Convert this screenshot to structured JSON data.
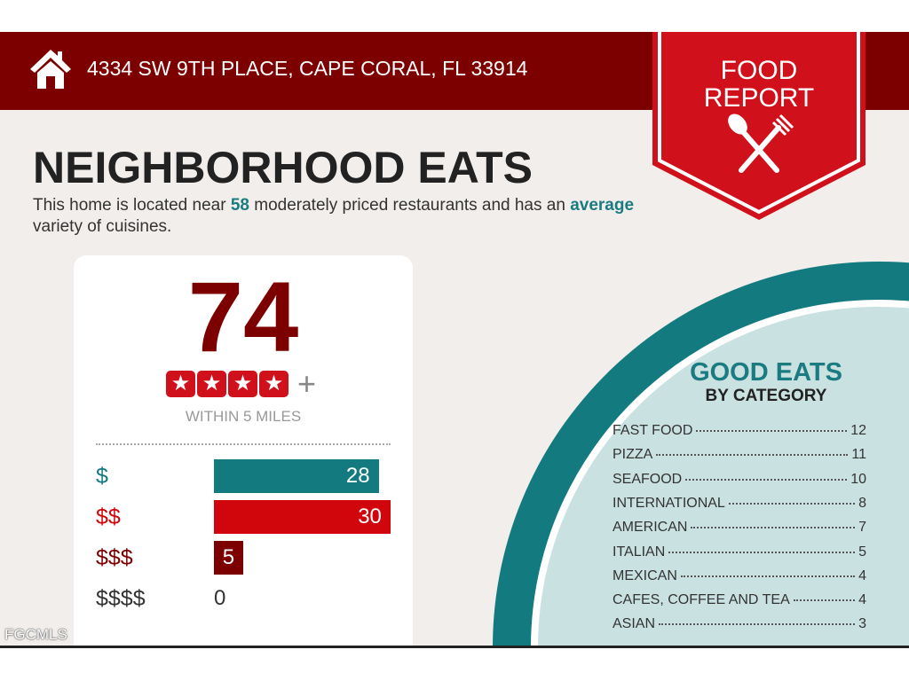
{
  "header": {
    "address": "4334 SW 9TH PLACE, CAPE CORAL, FL 33914",
    "badge_line1": "FOOD",
    "badge_line2": "REPORT",
    "home_icon": "home-icon",
    "badge_icon": "spoon-fork-icon"
  },
  "title": "NEIGHBORHOOD EATS",
  "description": {
    "p1": "This home is located near ",
    "count": "58",
    "p2": " moderately priced restaurants and has an ",
    "variety": "average",
    "p3": " variety of cuisines."
  },
  "score_card": {
    "score": "74",
    "stars": 4,
    "stars_suffix": "+",
    "radius_label": "WITHIN 5 MILES",
    "price_levels": [
      {
        "label": "$",
        "value": 28,
        "value_text": "28",
        "color": "#137b80"
      },
      {
        "label": "$$",
        "value": 30,
        "value_text": "30",
        "color": "#d0060c"
      },
      {
        "label": "$$$",
        "value": 5,
        "value_text": "5",
        "color": "#7d0000"
      },
      {
        "label": "$$$$",
        "value": 0,
        "value_text": "0",
        "color": "#333333"
      }
    ]
  },
  "good_eats": {
    "title": "GOOD EATS",
    "subtitle": "BY CATEGORY",
    "categories": [
      {
        "name": "FAST FOOD",
        "count": "12"
      },
      {
        "name": "PIZZA",
        "count": "11"
      },
      {
        "name": "SEAFOOD",
        "count": "10"
      },
      {
        "name": "INTERNATIONAL",
        "count": "8"
      },
      {
        "name": "AMERICAN",
        "count": "7"
      },
      {
        "name": "ITALIAN",
        "count": "5"
      },
      {
        "name": "MEXICAN",
        "count": "4"
      },
      {
        "name": "CAFES, COFFEE AND TEA",
        "count": "4"
      },
      {
        "name": "ASIAN",
        "count": "3"
      }
    ]
  },
  "watermark": "FGCMLS",
  "colors": {
    "dark_red": "#7d0000",
    "red": "#d0101a",
    "teal": "#137b80",
    "light_teal": "#c9e2e1"
  }
}
